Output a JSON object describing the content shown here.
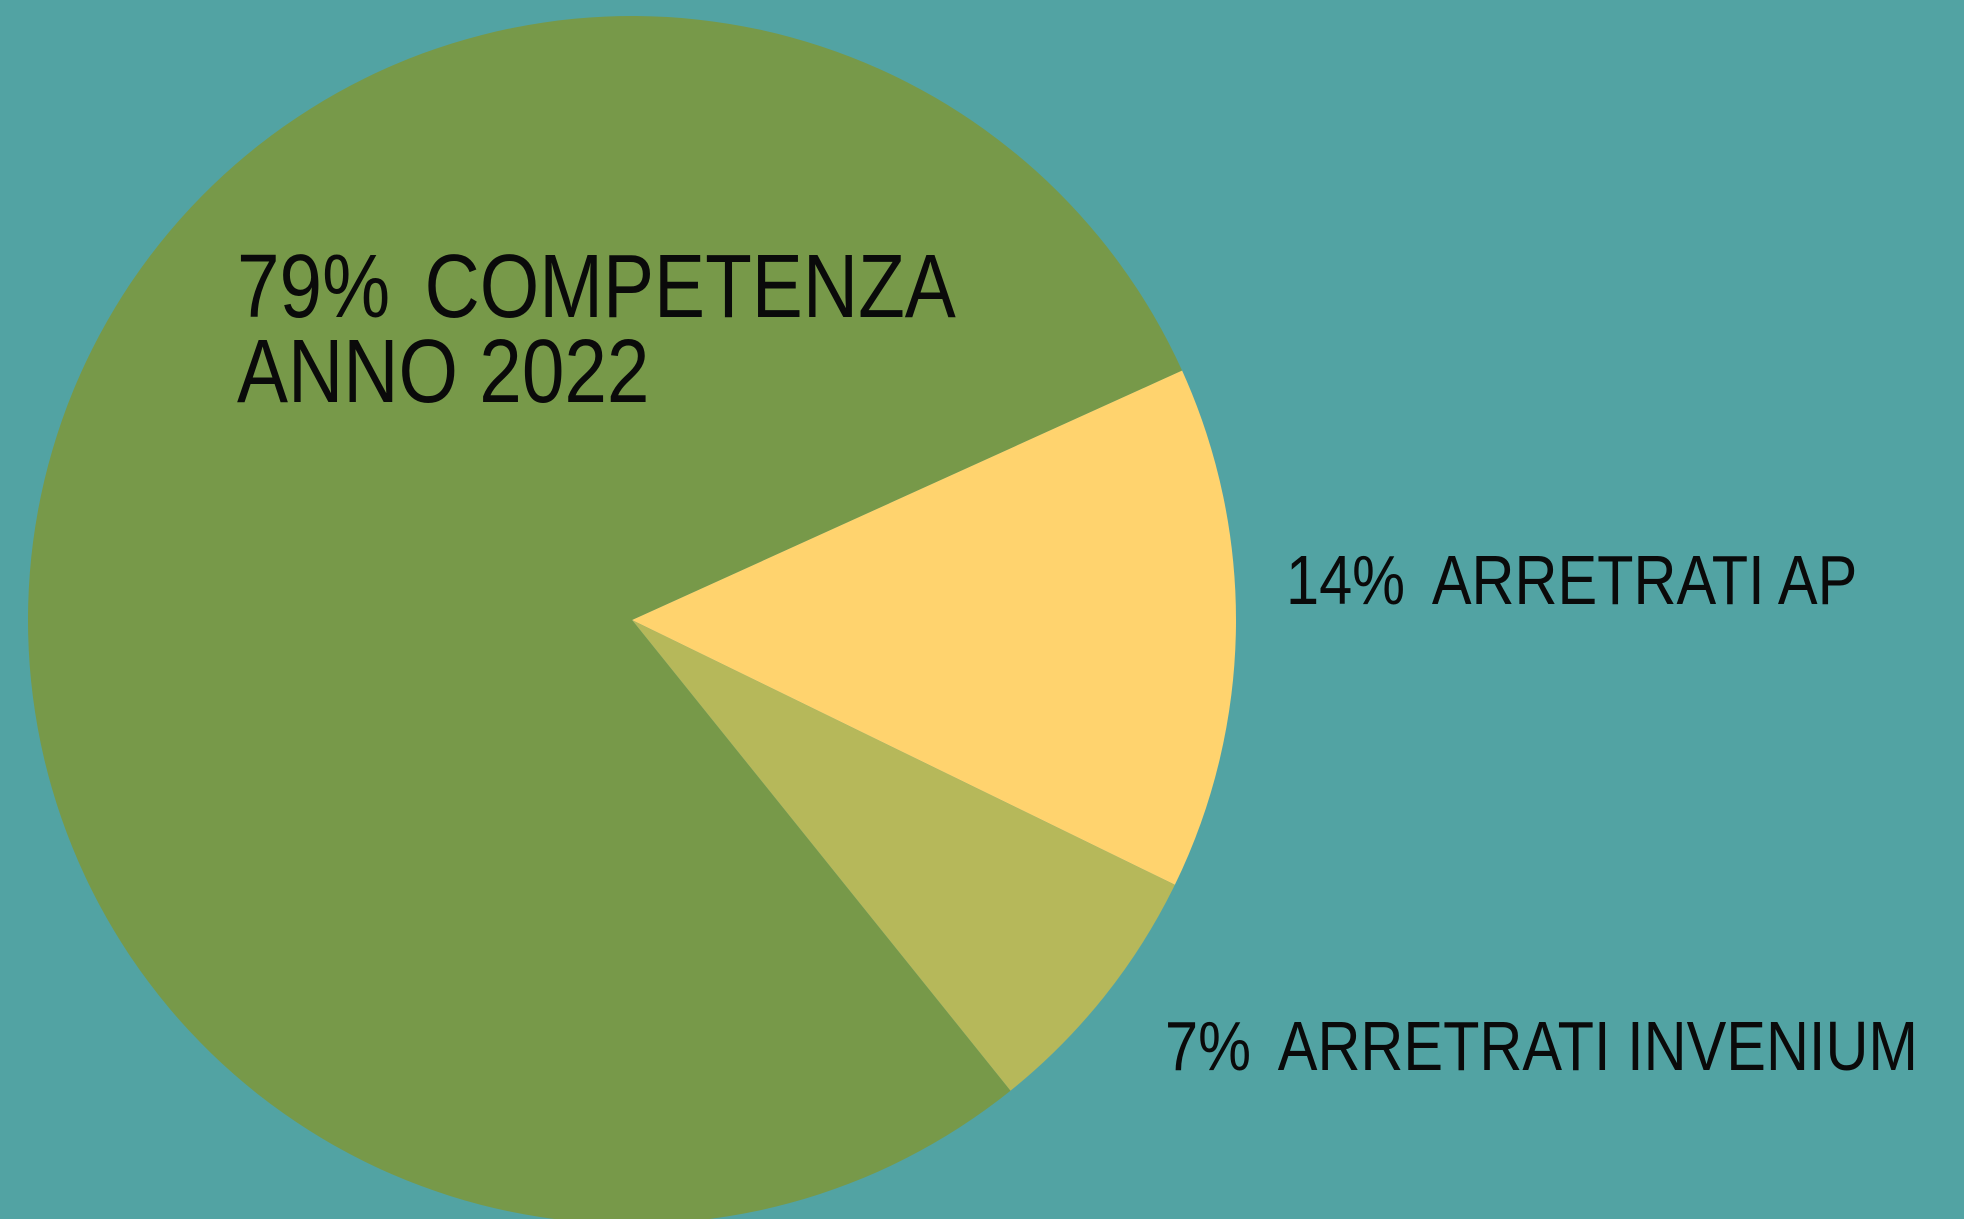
{
  "chart_data": {
    "type": "pie",
    "categories": [
      "ARRETRATI AP",
      "ARRETRATI INVENIUM",
      "COMPETENZA ANNO 2022"
    ],
    "values": [
      14,
      7,
      79
    ],
    "value_labels": [
      "14%",
      "7%",
      "79%"
    ],
    "colors": [
      "#ffd36e",
      "#b6b85a",
      "#779949"
    ],
    "background": "#52a3a3"
  }
}
